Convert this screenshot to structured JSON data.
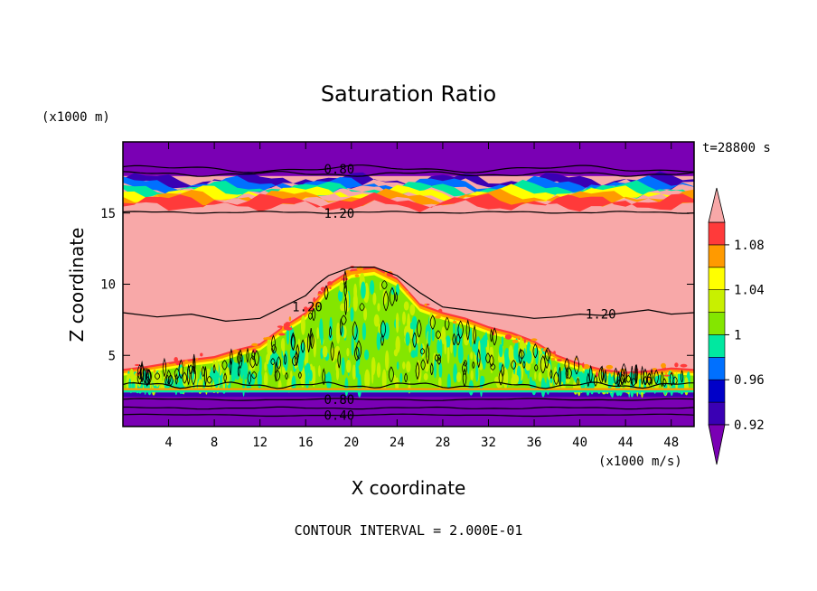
{
  "chart_data": {
    "type": "heatmap",
    "title": "Saturation Ratio",
    "xlabel": "X coordinate",
    "ylabel": "Z coordinate",
    "x_unit": "(x1000 m/s)",
    "y_unit": "(x1000 m)",
    "time_label": "t=28800 s",
    "footer": "CONTOUR INTERVAL = 2.000E-01",
    "xlim": [
      0,
      50
    ],
    "ylim": [
      0,
      20
    ],
    "x_ticks": [
      "4",
      "8",
      "12",
      "16",
      "20",
      "24",
      "28",
      "32",
      "36",
      "40",
      "44",
      "48"
    ],
    "y_ticks": [
      "5",
      "10",
      "15"
    ],
    "colorbar": {
      "levels": [
        0.92,
        0.94,
        0.96,
        0.98,
        1.0,
        1.02,
        1.04,
        1.06,
        1.08,
        1.1
      ],
      "labels": [
        "0.92",
        "0.96",
        "1",
        "1.04",
        "1.08"
      ],
      "colors": {
        "below": "#7a00b4",
        "b092_094": "#3a00b4",
        "b094_096": "#0000c8",
        "b096_098": "#0070ff",
        "b098_100": "#00e8a0",
        "b100_102": "#84e600",
        "b102_104": "#c8f000",
        "b104_106": "#ffff00",
        "b106_108": "#ff9a00",
        "b108_110": "#ff3a3a",
        "above": "#f8a8a8"
      }
    },
    "contour_labels": [
      "0.80",
      "1.20",
      "1.20",
      "1.20",
      "0.80",
      "0.40"
    ],
    "contour_interval": 0.2
  }
}
